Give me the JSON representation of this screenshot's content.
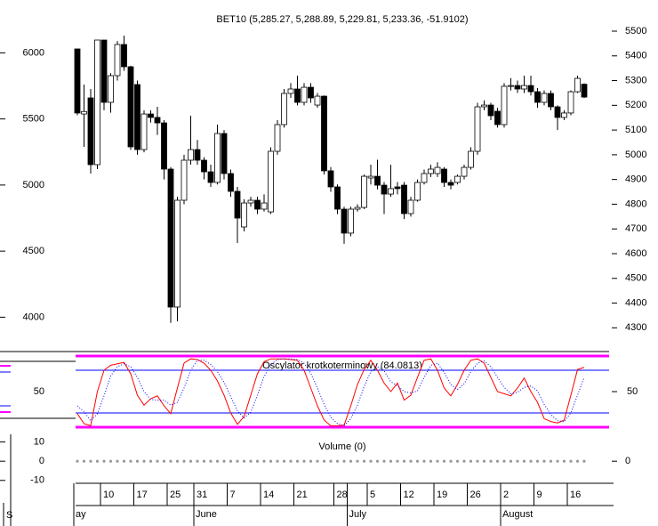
{
  "chart_data": [
    {
      "type": "candlestick",
      "title": "BET10 (5,285.27, 5,288.89, 5,229.81, 5,233.36, -51.9102)",
      "categories": [
        null,
        null,
        null,
        null,
        "10",
        null,
        null,
        null,
        null,
        "17",
        null,
        null,
        null,
        null,
        "25",
        null,
        null,
        null,
        "31",
        null,
        null,
        null,
        null,
        "7",
        null,
        null,
        null,
        null,
        "14",
        null,
        null,
        null,
        null,
        "21",
        null,
        null,
        null,
        null,
        null,
        "28",
        null,
        null,
        null,
        null,
        "5",
        null,
        null,
        null,
        null,
        "12",
        null,
        null,
        null,
        null,
        "19",
        null,
        null,
        null,
        null,
        "26",
        null,
        null,
        null,
        null,
        "2",
        null,
        null,
        null,
        null,
        "9",
        null,
        null,
        null,
        null,
        "16",
        null,
        null
      ],
      "months": [
        "ay",
        null,
        null,
        null,
        null,
        null,
        null,
        null,
        null,
        null,
        null,
        null,
        null,
        null,
        null,
        null,
        null,
        null,
        "June",
        null,
        null,
        null,
        null,
        null,
        null,
        null,
        null,
        null,
        null,
        null,
        null,
        null,
        null,
        null,
        null,
        null,
        null,
        null,
        null,
        null,
        null,
        "July",
        null,
        null,
        null,
        null,
        null,
        null,
        null,
        null,
        null,
        null,
        null,
        null,
        null,
        null,
        null,
        null,
        null,
        null,
        null,
        null,
        null,
        null,
        "August",
        null,
        null,
        null,
        null,
        null,
        null,
        null,
        null,
        null,
        null,
        null,
        null
      ],
      "open": [
        5428,
        5165,
        5230,
        4960,
        5464,
        5212,
        5320,
        5446,
        5356,
        5284,
        5021,
        5165,
        5151,
        5129,
        4942,
        4384,
        4816,
        4978,
        5021,
        4978,
        4931,
        4888,
        5086,
        4924,
        4852,
        4708,
        4805,
        4816,
        4780,
        4769,
        5014,
        5122,
        5248,
        5266,
        5212,
        5273,
        5201,
        5237,
        4935,
        4870,
        4780,
        4683,
        4780,
        4787,
        4906,
        4913,
        4877,
        4841,
        4870,
        4877,
        4762,
        4816,
        4888,
        4924,
        4924,
        4942,
        4888,
        4888,
        4913,
        4949,
        5014,
        5194,
        5201,
        5176,
        5122,
        5277,
        5280,
        5266,
        5280,
        5255,
        5212,
        5248,
        5194,
        5151,
        5169,
        5255,
        5285.27
      ],
      "high": [
        5430,
        5284,
        5266,
        5464,
        5464,
        5330,
        5460,
        5482,
        5360,
        5300,
        5180,
        5180,
        5194,
        5140,
        4950,
        4830,
        5000,
        5158,
        5060,
        4990,
        4960,
        5122,
        5100,
        4940,
        4870,
        4820,
        4830,
        4830,
        4840,
        5030,
        5140,
        5266,
        5290,
        5320,
        5290,
        5290,
        5250,
        5240,
        4950,
        4880,
        4790,
        4790,
        4800,
        4920,
        4960,
        4980,
        4890,
        4960,
        4890,
        4890,
        4830,
        4900,
        4940,
        4960,
        4970,
        4950,
        4900,
        4920,
        4960,
        5030,
        5210,
        5220,
        5210,
        5190,
        5290,
        5310,
        5300,
        5320,
        5320,
        5270,
        5260,
        5260,
        5200,
        5180,
        5260,
        5320,
        5288.89
      ],
      "low": [
        5160,
        5032,
        4924,
        4942,
        5180,
        5170,
        5300,
        5340,
        5020,
        5000,
        5010,
        5130,
        5080,
        4900,
        4320,
        4326,
        4800,
        4960,
        4960,
        4900,
        4870,
        4880,
        4900,
        4830,
        4643,
        4690,
        4790,
        4760,
        4770,
        4760,
        5000,
        5110,
        5230,
        5200,
        5200,
        5210,
        5190,
        4920,
        4850,
        4760,
        4640,
        4670,
        4770,
        4780,
        4880,
        4860,
        4760,
        4830,
        4840,
        4740,
        4750,
        4810,
        4880,
        4910,
        4910,
        4870,
        4860,
        4880,
        4900,
        4940,
        5000,
        5180,
        5140,
        5110,
        5110,
        5260,
        5250,
        5250,
        5240,
        5190,
        5200,
        5180,
        5100,
        5140,
        5160,
        5250,
        5229.81
      ],
      "close": [
        5169,
        5175,
        4960,
        5464,
        5212,
        5320,
        5446,
        5356,
        5032,
        5021,
        5165,
        5151,
        5129,
        4942,
        4384,
        4816,
        4978,
        5021,
        4978,
        4931,
        4888,
        5086,
        4924,
        4852,
        4744,
        4805,
        4816,
        4780,
        4805,
        5014,
        5122,
        5248,
        5266,
        5212,
        5273,
        5230,
        5237,
        4935,
        4870,
        4780,
        4683,
        4780,
        4787,
        4913,
        4913,
        4877,
        4841,
        4863,
        4863,
        4762,
        4816,
        4888,
        4924,
        4942,
        4949,
        4888,
        4877,
        4913,
        4949,
        5014,
        5194,
        5201,
        5158,
        5122,
        5277,
        5280,
        5266,
        5280,
        5255,
        5212,
        5248,
        5194,
        5151,
        5169,
        5255,
        5309,
        5233.36
      ],
      "up_color": "#ffffff",
      "down_color": "#000000",
      "ylim": [
        4204,
        5626
      ],
      "yticks": [
        5500,
        5400,
        5300,
        5200,
        5100,
        5000,
        4900,
        4800,
        4700,
        4600,
        4500,
        4400,
        4300
      ],
      "y2lim": [
        3740,
        6400
      ],
      "y2ticks": [
        6000,
        5500,
        5000,
        4500,
        4000
      ]
    },
    {
      "type": "line",
      "title": "Oscylator krotkoterminowy (84.0813)",
      "series": [
        {
          "color": "#ff0000",
          "style": "solid",
          "values": [
            19,
            5,
            2,
            50,
            80,
            87,
            89,
            91,
            75,
            45,
            31,
            40,
            44,
            30,
            19,
            55,
            90,
            96,
            95,
            90,
            80,
            65,
            45,
            20,
            4,
            15,
            45,
            75,
            92,
            96,
            96,
            96,
            95,
            94,
            80,
            55,
            30,
            10,
            2,
            2,
            3,
            30,
            60,
            81,
            94,
            80,
            62,
            50,
            62,
            38,
            45,
            70,
            94,
            96,
            80,
            55,
            44,
            60,
            80,
            94,
            96,
            90,
            70,
            50,
            47,
            44,
            55,
            69,
            50,
            35,
            12,
            8,
            6,
            10,
            45,
            81,
            84.0813
          ]
        },
        {
          "color": "#0000ff",
          "style": "dotted",
          "values": [
            30,
            22,
            9,
            19,
            44,
            72,
            85,
            89,
            85,
            70,
            50,
            39,
            38,
            38,
            31,
            35,
            55,
            80,
            94,
            94,
            88,
            78,
            63,
            43,
            23,
            13,
            21,
            45,
            71,
            88,
            95,
            96,
            96,
            95,
            90,
            76,
            55,
            32,
            14,
            5,
            2,
            12,
            31,
            57,
            78,
            85,
            79,
            64,
            58,
            50,
            48,
            51,
            70,
            87,
            90,
            77,
            60,
            53,
            61,
            78,
            90,
            93,
            85,
            70,
            56,
            47,
            49,
            56,
            58,
            51,
            32,
            18,
            9,
            8,
            20,
            45,
            70
          ]
        }
      ],
      "levels": [
        {
          "value": 100,
          "color": "#ff00ff"
        },
        {
          "value": 0,
          "color": "#ff00ff"
        },
        {
          "value": 80,
          "color": "#0000ff"
        },
        {
          "value": 20,
          "color": "#0000ff"
        }
      ],
      "ylim": [
        -10,
        105
      ],
      "yticks": [
        50
      ]
    },
    {
      "type": "dots",
      "title": "Volume (0)",
      "values": [
        0,
        0,
        0,
        0,
        0,
        0,
        0,
        0,
        0,
        0,
        0,
        0,
        0,
        0,
        0,
        0,
        0,
        0,
        0,
        0,
        0,
        0,
        0,
        0,
        0,
        0,
        0,
        0,
        0,
        0,
        0,
        0,
        0,
        0,
        0,
        0,
        0,
        0,
        0,
        0,
        0,
        0,
        0,
        0,
        0,
        0,
        0,
        0,
        0,
        0,
        0,
        0,
        0,
        0,
        0,
        0,
        0,
        0,
        0,
        0,
        0,
        0,
        0,
        0,
        0,
        0,
        0,
        0,
        0,
        0,
        0,
        0,
        0,
        0,
        0,
        0,
        0
      ],
      "color": "#999999",
      "ylim": [
        -11.5,
        14
      ],
      "yticks": [
        0
      ],
      "y2ticks": [
        10,
        0,
        -10
      ]
    }
  ],
  "corner_label": "S"
}
